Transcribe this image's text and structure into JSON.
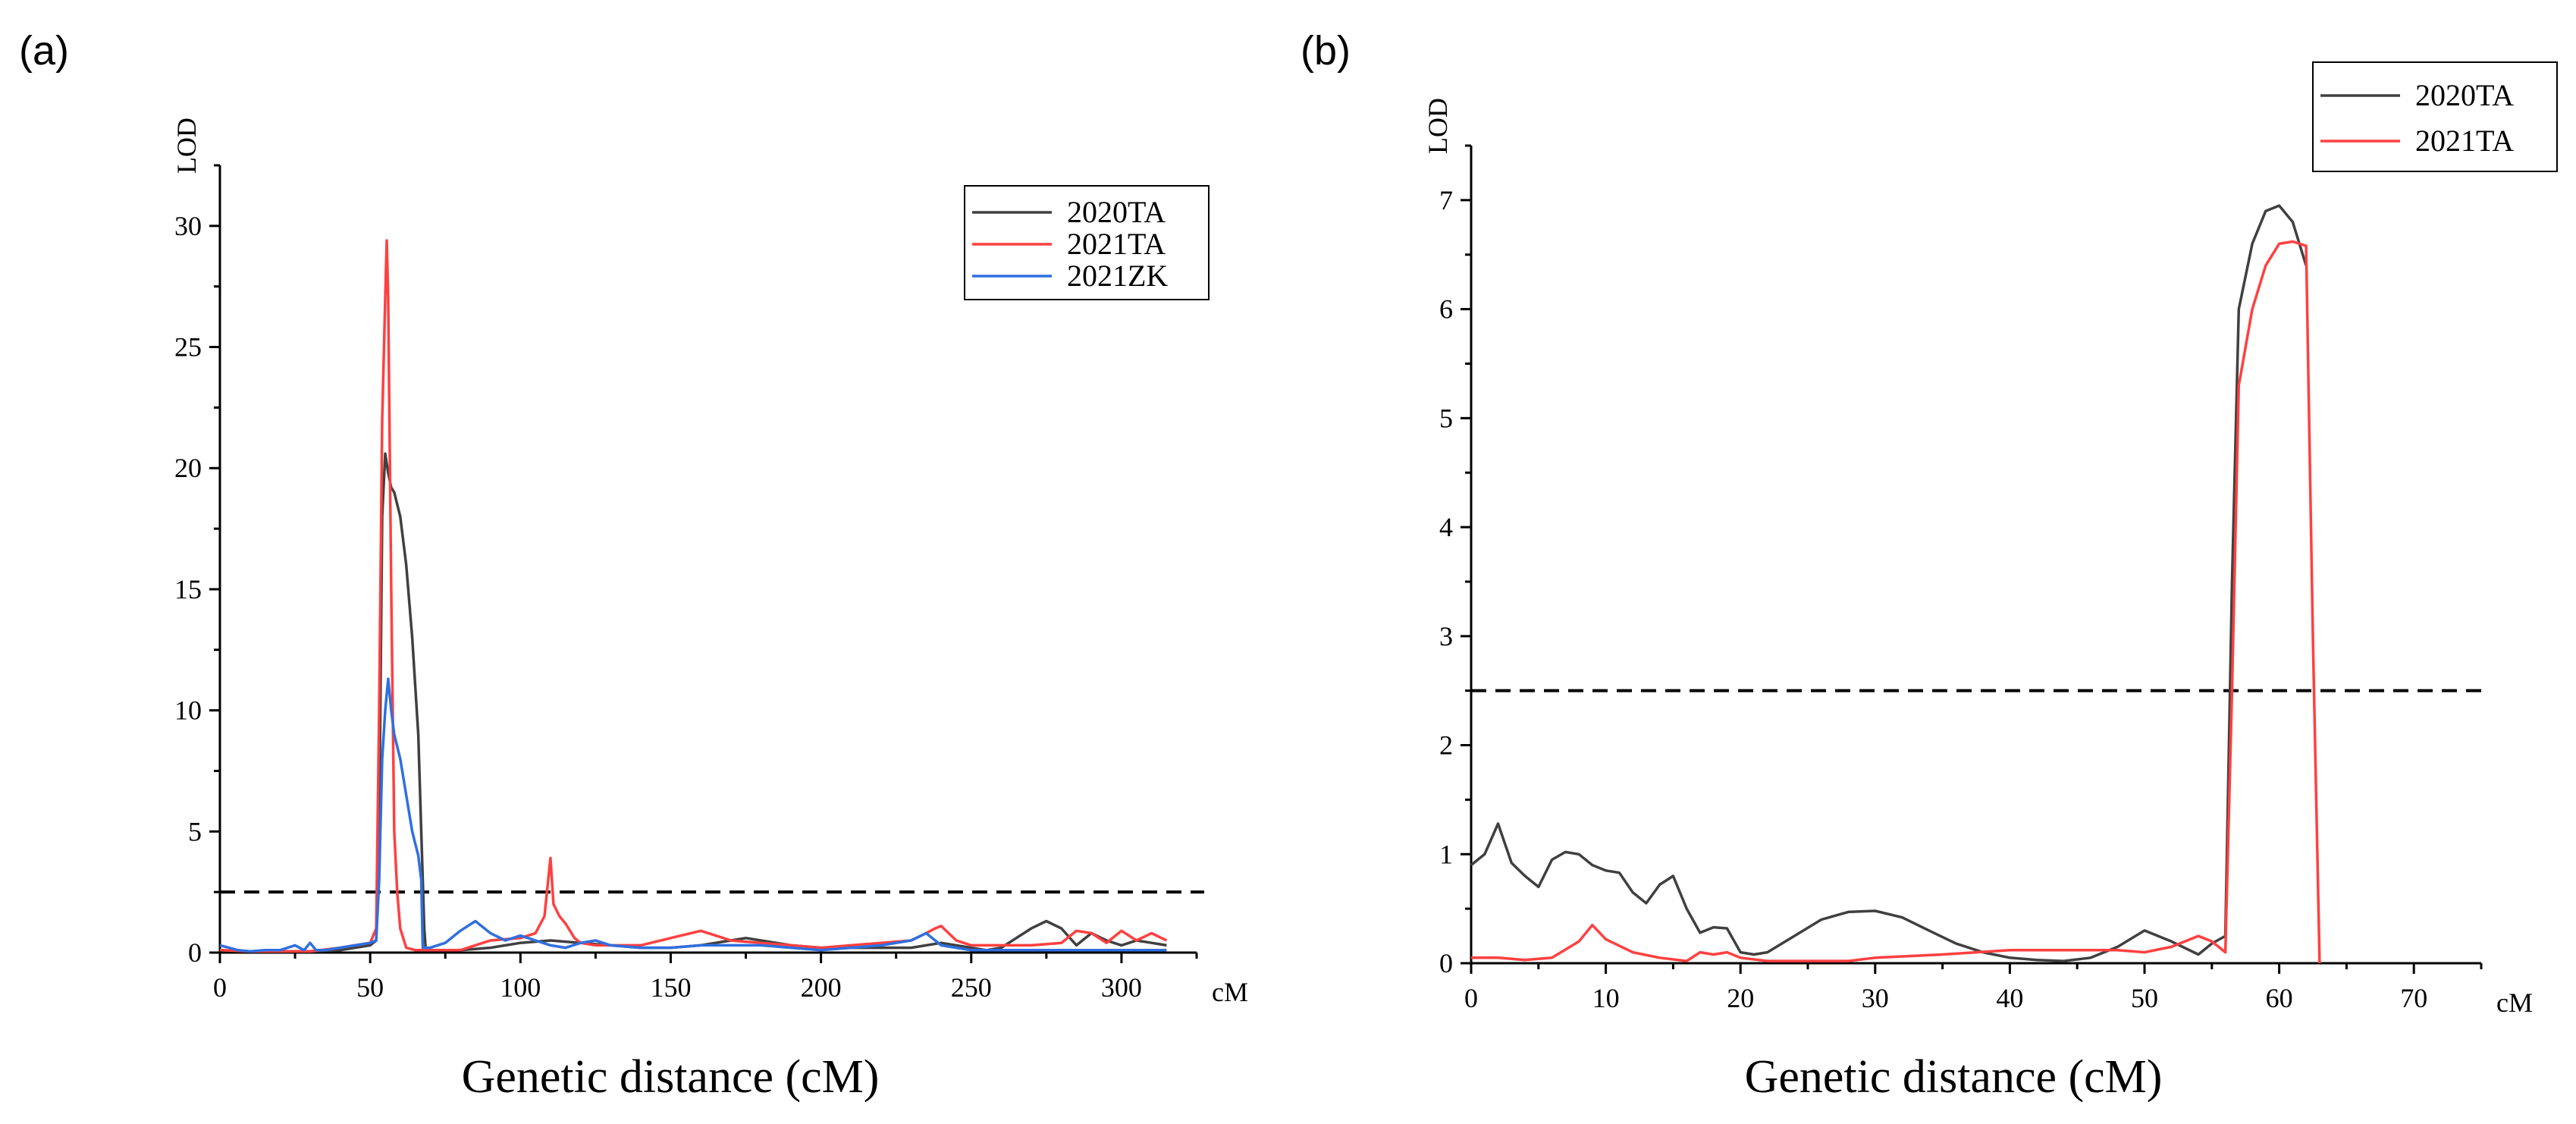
{
  "chart_data": [
    {
      "type": "line",
      "panel_label": "(a)",
      "title": "",
      "xlabel": "Genetic distance (cM)",
      "xunit": "cM",
      "ylabel": "LOD",
      "xlim": [
        0,
        325
      ],
      "ylim": [
        0,
        32.5
      ],
      "xticks": [
        0,
        50,
        100,
        150,
        200,
        250,
        300
      ],
      "yticks": [
        0,
        5,
        10,
        15,
        20,
        25,
        30
      ],
      "threshold": 2.5,
      "legend_position": "top-right",
      "series": [
        {
          "name": "2020TA",
          "color": "#404040",
          "x": [
            0,
            10,
            20,
            30,
            40,
            50,
            52,
            53,
            54,
            55,
            56,
            57,
            58,
            60,
            62,
            64,
            66,
            67,
            68,
            68.5,
            72,
            80,
            90,
            100,
            110,
            120,
            130,
            140,
            150,
            160,
            170,
            175,
            180,
            190,
            200,
            210,
            220,
            230,
            240,
            250,
            255,
            260,
            265,
            270,
            275,
            280,
            285,
            290,
            295,
            300,
            305,
            310,
            315
          ],
          "values": [
            0.1,
            0.05,
            0.05,
            0.05,
            0.1,
            0.3,
            0.5,
            5.0,
            18.0,
            20.6,
            19.8,
            19.2,
            19.0,
            18.0,
            16.0,
            13.0,
            9.0,
            5.0,
            1.0,
            0.1,
            0.1,
            0.1,
            0.2,
            0.4,
            0.5,
            0.4,
            0.3,
            0.2,
            0.2,
            0.3,
            0.5,
            0.6,
            0.5,
            0.3,
            0.2,
            0.2,
            0.2,
            0.2,
            0.4,
            0.2,
            0.1,
            0.2,
            0.6,
            1.0,
            1.3,
            1.0,
            0.3,
            0.8,
            0.5,
            0.3,
            0.5,
            0.4,
            0.3
          ]
        },
        {
          "name": "2021TA",
          "color": "#ff4040",
          "x": [
            0,
            10,
            20,
            30,
            40,
            45,
            50,
            52,
            53,
            54,
            55,
            55.5,
            56,
            57,
            58,
            59,
            60,
            62,
            65,
            70,
            80,
            90,
            100,
            105,
            108,
            110,
            111,
            113,
            115,
            118,
            120,
            125,
            130,
            140,
            150,
            160,
            165,
            170,
            180,
            190,
            200,
            210,
            220,
            230,
            235,
            238,
            240,
            245,
            250,
            260,
            270,
            280,
            285,
            290,
            295,
            300,
            305,
            310,
            315
          ],
          "values": [
            0.1,
            0.05,
            0.05,
            0.05,
            0.2,
            0.3,
            0.4,
            1.0,
            10.0,
            22.0,
            27.0,
            29.4,
            27.0,
            15.0,
            5.0,
            2.5,
            1.0,
            0.2,
            0.1,
            0.1,
            0.1,
            0.5,
            0.6,
            0.8,
            1.5,
            3.9,
            2.0,
            1.5,
            1.2,
            0.6,
            0.4,
            0.3,
            0.3,
            0.3,
            0.6,
            0.9,
            0.7,
            0.5,
            0.4,
            0.3,
            0.2,
            0.3,
            0.4,
            0.5,
            0.8,
            1.0,
            1.1,
            0.5,
            0.3,
            0.3,
            0.3,
            0.4,
            0.9,
            0.8,
            0.4,
            0.9,
            0.5,
            0.8,
            0.5
          ]
        },
        {
          "name": "2021ZK",
          "color": "#2f6fe0",
          "x": [
            0,
            3,
            6,
            10,
            15,
            20,
            25,
            28,
            30,
            32,
            35,
            40,
            45,
            50,
            52,
            53,
            54,
            55,
            56,
            57,
            58,
            60,
            62,
            64,
            66,
            67,
            67.5,
            70,
            75,
            80,
            85,
            90,
            95,
            100,
            105,
            110,
            115,
            120,
            125,
            130,
            140,
            150,
            160,
            170,
            180,
            190,
            200,
            210,
            220,
            230,
            235,
            240,
            245,
            250,
            260,
            270,
            280,
            290,
            300,
            310,
            315
          ],
          "values": [
            0.3,
            0.2,
            0.1,
            0.05,
            0.1,
            0.1,
            0.3,
            0.1,
            0.4,
            0.1,
            0.1,
            0.2,
            0.3,
            0.4,
            0.5,
            3.0,
            8.0,
            10.0,
            11.3,
            10.0,
            9.0,
            8.0,
            6.5,
            5.0,
            4.0,
            3.0,
            0.2,
            0.2,
            0.4,
            0.9,
            1.3,
            0.8,
            0.5,
            0.7,
            0.5,
            0.3,
            0.2,
            0.4,
            0.5,
            0.3,
            0.2,
            0.2,
            0.3,
            0.3,
            0.3,
            0.2,
            0.1,
            0.2,
            0.3,
            0.5,
            0.8,
            0.3,
            0.2,
            0.1,
            0.1,
            0.1,
            0.1,
            0.1,
            0.1,
            0.1,
            0.1
          ]
        }
      ]
    },
    {
      "type": "line",
      "panel_label": "(b)",
      "title": "",
      "xlabel": "Genetic distance (cM)",
      "xunit": "cM",
      "ylabel": "LOD",
      "xlim": [
        0,
        75
      ],
      "ylim": [
        0,
        7.5
      ],
      "xticks": [
        0,
        10,
        20,
        30,
        40,
        50,
        60,
        70
      ],
      "yticks": [
        0,
        1,
        2,
        3,
        4,
        5,
        6,
        7
      ],
      "threshold": 2.5,
      "legend_position": "top-right",
      "series": [
        {
          "name": "2020TA",
          "color": "#404040",
          "x": [
            0,
            1,
            2,
            3,
            4,
            5,
            6,
            7,
            8,
            9,
            10,
            11,
            12,
            13,
            14,
            15,
            16,
            17,
            18,
            19,
            20,
            21,
            22,
            24,
            26,
            28,
            30,
            32,
            34,
            36,
            38,
            40,
            42,
            44,
            46,
            48,
            50,
            52,
            54,
            55,
            56,
            56.5,
            57,
            58,
            59,
            60,
            61,
            62
          ],
          "values": [
            0.9,
            1.0,
            1.28,
            0.92,
            0.8,
            0.7,
            0.95,
            1.02,
            1.0,
            0.9,
            0.85,
            0.83,
            0.65,
            0.55,
            0.72,
            0.8,
            0.5,
            0.28,
            0.33,
            0.32,
            0.1,
            0.08,
            0.1,
            0.25,
            0.4,
            0.47,
            0.48,
            0.42,
            0.3,
            0.18,
            0.1,
            0.05,
            0.03,
            0.02,
            0.05,
            0.15,
            0.3,
            0.2,
            0.08,
            0.18,
            0.25,
            3.5,
            6.0,
            6.6,
            6.9,
            6.95,
            6.8,
            6.4
          ]
        },
        {
          "name": "2021TA",
          "color": "#ff4040",
          "x": [
            0,
            2,
            4,
            6,
            8,
            9,
            10,
            12,
            14,
            16,
            17,
            18,
            19,
            20,
            22,
            24,
            26,
            28,
            30,
            35,
            40,
            45,
            48,
            50,
            52,
            54,
            55,
            56,
            56.5,
            57,
            58,
            59,
            60,
            61,
            62,
            62.5,
            63
          ],
          "values": [
            0.05,
            0.05,
            0.03,
            0.05,
            0.2,
            0.35,
            0.22,
            0.1,
            0.05,
            0.02,
            0.1,
            0.08,
            0.1,
            0.05,
            0.02,
            0.02,
            0.02,
            0.02,
            0.05,
            0.08,
            0.12,
            0.12,
            0.12,
            0.1,
            0.15,
            0.25,
            0.2,
            0.1,
            2.5,
            5.3,
            6.0,
            6.4,
            6.6,
            6.62,
            6.58,
            3.0,
            0.0
          ]
        }
      ]
    }
  ]
}
